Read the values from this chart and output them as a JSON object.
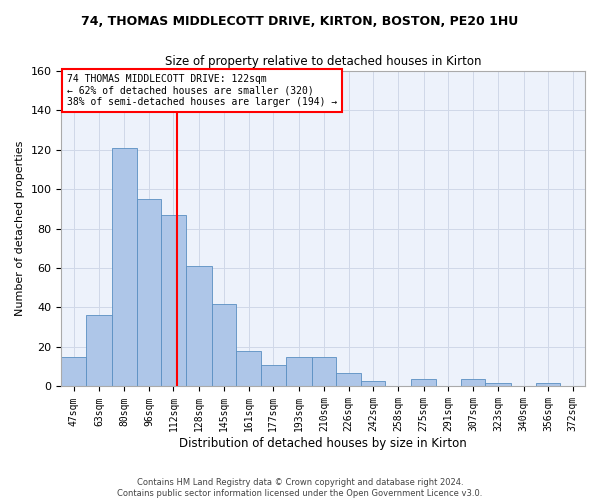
{
  "title1": "74, THOMAS MIDDLECOTT DRIVE, KIRTON, BOSTON, PE20 1HU",
  "title2": "Size of property relative to detached houses in Kirton",
  "xlabel": "Distribution of detached houses by size in Kirton",
  "ylabel": "Number of detached properties",
  "footer1": "Contains HM Land Registry data © Crown copyright and database right 2024.",
  "footer2": "Contains public sector information licensed under the Open Government Licence v3.0.",
  "annotation_line1": "74 THOMAS MIDDLECOTT DRIVE: 122sqm",
  "annotation_line2": "← 62% of detached houses are smaller (320)",
  "annotation_line3": "38% of semi-detached houses are larger (194) →",
  "property_size": 122,
  "bar_labels": [
    "47sqm",
    "63sqm",
    "80sqm",
    "96sqm",
    "112sqm",
    "128sqm",
    "145sqm",
    "161sqm",
    "177sqm",
    "193sqm",
    "210sqm",
    "226sqm",
    "242sqm",
    "258sqm",
    "275sqm",
    "291sqm",
    "307sqm",
    "323sqm",
    "340sqm",
    "356sqm",
    "372sqm"
  ],
  "bar_values": [
    15,
    36,
    121,
    95,
    87,
    61,
    42,
    18,
    11,
    15,
    15,
    7,
    3,
    0,
    4,
    0,
    4,
    2,
    0,
    2,
    0
  ],
  "bar_left_edges": [
    47,
    63,
    80,
    96,
    112,
    128,
    145,
    161,
    177,
    193,
    210,
    226,
    242,
    258,
    275,
    291,
    307,
    323,
    340,
    356,
    372
  ],
  "bar_color": "#aec6e8",
  "bar_edge_color": "#5a8fc2",
  "vline_x": 122,
  "vline_color": "red",
  "ylim": [
    0,
    160
  ],
  "yticks": [
    0,
    20,
    40,
    60,
    80,
    100,
    120,
    140,
    160
  ],
  "grid_color": "#d0d8e8",
  "background_color": "#edf2fb",
  "annotation_box_color": "white",
  "annotation_box_edge": "red"
}
